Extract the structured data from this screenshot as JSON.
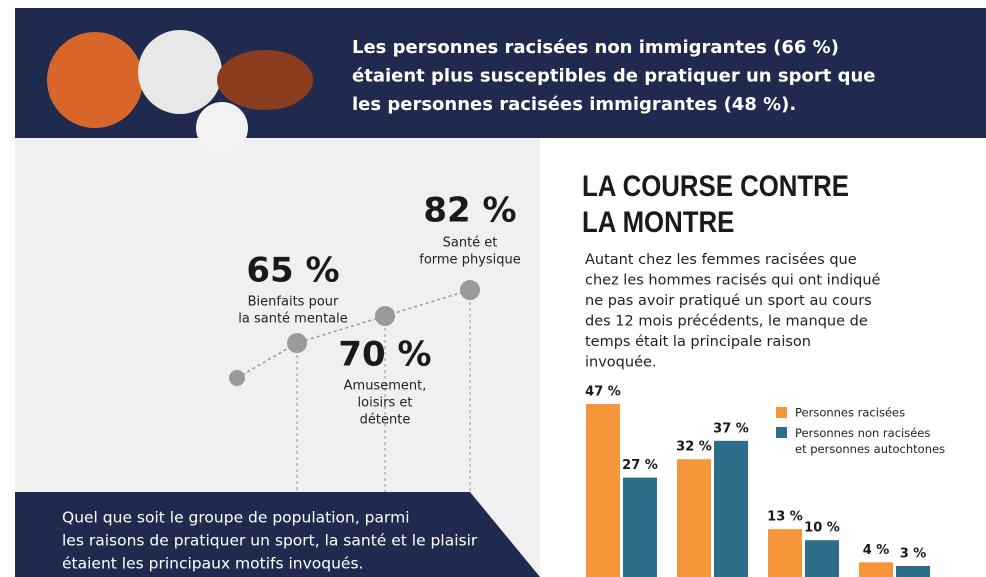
{
  "header": {
    "lines": [
      "Les personnes racisées non immigrantes (66 %)",
      "étaient plus susceptibles de pratiquer un sport que",
      "les personnes racisées immigrantes (48 %)."
    ]
  },
  "reasons": [
    {
      "value": "82 %",
      "label": [
        "Santé et",
        "forme physique"
      ]
    },
    {
      "value": "65 %",
      "label": [
        "Bienfaits pour",
        "la santé mentale"
      ]
    },
    {
      "value": "70 %",
      "label": [
        "Amusement,",
        "loisirs et",
        "détente"
      ]
    }
  ],
  "footer": {
    "lines": [
      "Quel que soit le groupe de population, parmi",
      "les raisons de pratiquer un sport, la santé et le plaisir",
      "étaient les principaux motifs invoqués."
    ]
  },
  "section": {
    "title": [
      "LA COURSE CONTRE",
      "LA MONTRE"
    ],
    "paragraph": [
      "Autant chez les femmes racisées que",
      "chez les hommes racisés qui ont indiqué",
      "ne pas avoir pratiqué un sport au cours",
      "des 12 mois précédents, le manque de",
      "temps était la principale raison",
      "invoquée."
    ]
  },
  "chart_data": {
    "type": "bar",
    "categories": [
      null,
      null,
      null,
      null
    ],
    "series": [
      {
        "name": "Personnes racisées",
        "color": "#f7953b",
        "values": [
          47,
          32,
          13,
          4
        ],
        "value_labels": [
          "47 %",
          "32 %",
          "13 %",
          "4 %"
        ]
      },
      {
        "name": "Personnes non racisées et personnes autochtones",
        "color": "#2e6e8a",
        "values": [
          27,
          37,
          10,
          3
        ],
        "value_labels": [
          "27 %",
          "37 %",
          "10 %",
          "3 %"
        ]
      }
    ]
  }
}
